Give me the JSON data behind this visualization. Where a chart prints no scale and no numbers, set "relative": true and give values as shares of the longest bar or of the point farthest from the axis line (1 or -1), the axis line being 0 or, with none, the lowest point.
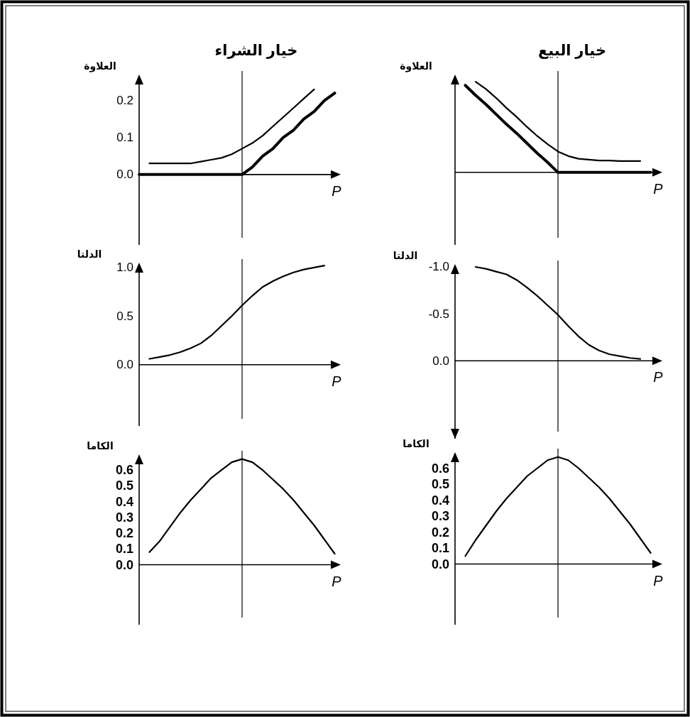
{
  "chart_data": [
    {
      "type": "line",
      "title": "خيار الشراء",
      "ylabel": "العلاوة",
      "xlabel": "P",
      "categories": [
        null,
        null,
        null,
        null,
        null,
        null,
        null,
        null,
        null,
        null,
        null,
        null,
        null,
        null,
        null,
        null,
        null,
        null,
        null,
        null
      ],
      "ylim": [
        -0.19,
        0.27
      ],
      "yticks": [
        {
          "value": 0,
          "label": "0.0"
        },
        0.1,
        0.2
      ],
      "series": [
        {
          "color": "#000000",
          "values": [
            null,
            0.03,
            0.03,
            0.03,
            0.03,
            0.03,
            0.035,
            0.04,
            0.045,
            0.055,
            0.07,
            0.085,
            0.105,
            0.13,
            0.155,
            0.18,
            0.205,
            0.23,
            null,
            null
          ]
        },
        {
          "color": "#000000",
          "values": [
            0,
            0,
            0,
            0,
            0,
            0,
            0,
            0,
            0,
            0,
            0,
            0.02,
            0.05,
            0.07,
            0.1,
            0.12,
            0.15,
            0.17,
            0.2,
            0.22
          ]
        }
      ]
    },
    {
      "type": "line",
      "title": "خيار البيع",
      "ylabel": "العلاوة",
      "xlabel": "P",
      "relative": true,
      "categories": [
        null,
        null,
        null,
        null,
        null,
        null,
        null,
        null,
        null,
        null,
        null,
        null,
        null,
        null,
        null,
        null,
        null,
        null,
        null,
        null
      ],
      "series": [
        {
          "color": "#000000",
          "values": [
            null,
            null,
            1.0,
            0.92,
            0.82,
            0.71,
            0.61,
            0.5,
            0.4,
            0.31,
            0.23,
            0.18,
            0.15,
            0.14,
            0.13,
            0.13,
            0.125,
            0.125,
            0.125,
            null
          ]
        },
        {
          "color": "#000000",
          "values": [
            null,
            0.96,
            0.85,
            0.75,
            0.64,
            0.53,
            0.43,
            0.32,
            0.21,
            0.11,
            0,
            0,
            0,
            0,
            0,
            0,
            0,
            0,
            0,
            0
          ]
        }
      ]
    },
    {
      "type": "line",
      "ylabel": "الدلتا",
      "xlabel": "P",
      "categories": [
        null,
        null,
        null,
        null,
        null,
        null,
        null,
        null,
        null,
        null,
        null,
        null,
        null,
        null,
        null,
        null,
        null,
        null,
        null,
        null
      ],
      "ylim": [
        -0.63,
        1.05
      ],
      "yticks": [
        {
          "value": 0,
          "label": "0.0"
        },
        0.5,
        {
          "value": 1,
          "label": "1.0"
        }
      ],
      "series": [
        {
          "color": "#000000",
          "values": [
            null,
            0.06,
            0.08,
            0.1,
            0.13,
            0.17,
            0.22,
            0.3,
            0.4,
            0.5,
            0.61,
            0.71,
            0.8,
            0.86,
            0.91,
            0.95,
            0.98,
            1.0,
            1.02,
            null
          ]
        }
      ]
    },
    {
      "type": "line",
      "ylabel": "الدلتا",
      "xlabel": "P",
      "categories": [
        null,
        null,
        null,
        null,
        null,
        null,
        null,
        null,
        null,
        null,
        null,
        null,
        null,
        null,
        null,
        null,
        null,
        null,
        null,
        null
      ],
      "ylim": [
        0.83,
        -1.03
      ],
      "yticks": [
        {
          "value": 0,
          "label": "0.0"
        },
        {
          "value": -0.5,
          "label": "-0.5"
        },
        {
          "value": -1,
          "label": "-1.0"
        }
      ],
      "series": [
        {
          "color": "#000000",
          "values": [
            null,
            null,
            -1.0,
            -0.98,
            -0.95,
            -0.92,
            -0.86,
            -0.78,
            -0.69,
            -0.59,
            -0.49,
            -0.37,
            -0.26,
            -0.17,
            -0.11,
            -0.07,
            -0.05,
            -0.03,
            -0.02,
            null
          ]
        }
      ]
    },
    {
      "type": "line",
      "ylabel": "الكاما",
      "xlabel": "P",
      "categories": [
        null,
        null,
        null,
        null,
        null,
        null,
        null,
        null,
        null,
        null,
        null,
        null,
        null,
        null,
        null,
        null,
        null,
        null,
        null,
        null
      ],
      "ylim": [
        -0.38,
        0.7
      ],
      "yticks": [
        {
          "value": 0,
          "label": "0.0"
        },
        0.1,
        0.2,
        0.3,
        0.4,
        0.5,
        0.6
      ],
      "series": [
        {
          "color": "#000000",
          "values": [
            null,
            0.08,
            0.15,
            0.24,
            0.33,
            0.41,
            0.48,
            0.55,
            0.6,
            0.65,
            0.67,
            0.65,
            0.6,
            0.54,
            0.48,
            0.41,
            0.33,
            0.25,
            0.16,
            0.07
          ]
        }
      ]
    },
    {
      "type": "line",
      "ylabel": "الكاما",
      "xlabel": "P",
      "categories": [
        null,
        null,
        null,
        null,
        null,
        null,
        null,
        null,
        null,
        null,
        null,
        null,
        null,
        null,
        null,
        null,
        null,
        null,
        null,
        null
      ],
      "ylim": [
        -0.38,
        0.7
      ],
      "yticks": [
        {
          "value": 0,
          "label": "0.0"
        },
        0.1,
        0.2,
        0.3,
        0.4,
        0.5,
        0.6
      ],
      "series": [
        {
          "color": "#000000",
          "values": [
            null,
            0.05,
            0.15,
            0.24,
            0.33,
            0.41,
            0.48,
            0.55,
            0.6,
            0.65,
            0.67,
            0.65,
            0.6,
            0.54,
            0.48,
            0.41,
            0.33,
            0.25,
            0.16,
            0.07
          ]
        }
      ]
    }
  ]
}
